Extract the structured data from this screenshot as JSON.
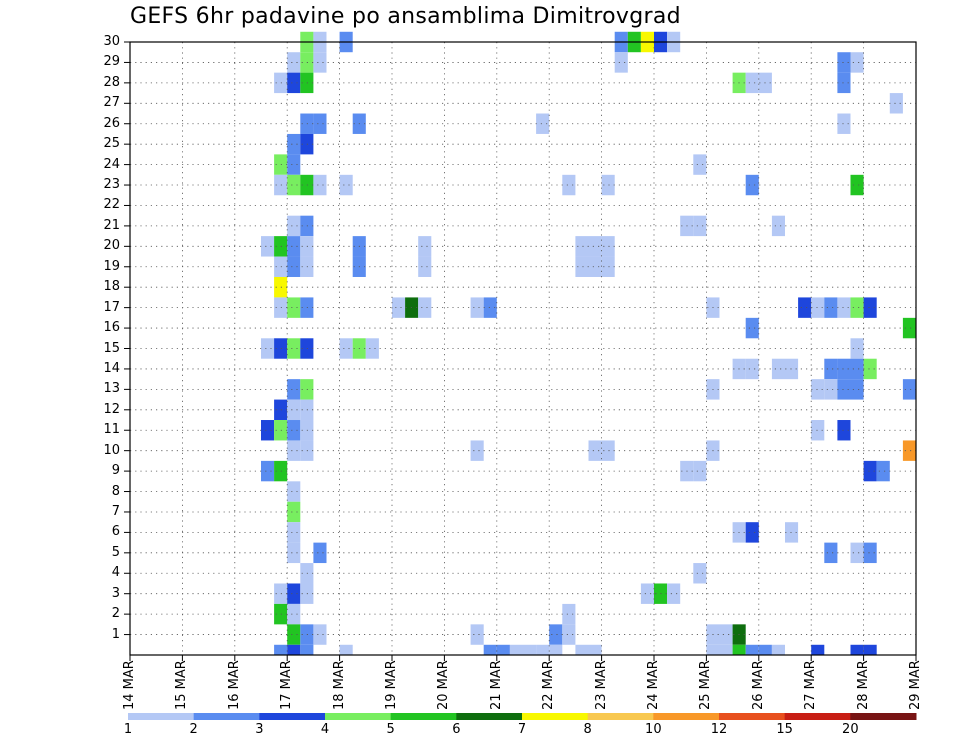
{
  "chart_data": {
    "type": "heatmap",
    "title": "GEFS 6hr padavine po ansamblima Dimitrovgrad",
    "xlabel": "",
    "ylabel": "",
    "x_tick_labels": [
      "14 MAR",
      "15 MAR",
      "16 MAR",
      "17 MAR",
      "18 MAR",
      "19 MAR",
      "20 MAR",
      "21 MAR",
      "22 MAR",
      "23 MAR",
      "24 MAR",
      "25 MAR",
      "26 MAR",
      "27 MAR",
      "28 MAR",
      "29 MAR"
    ],
    "y_tick_labels": [
      "1",
      "2",
      "3",
      "4",
      "5",
      "6",
      "7",
      "8",
      "9",
      "10",
      "11",
      "12",
      "13",
      "14",
      "15",
      "16",
      "17",
      "18",
      "19",
      "20",
      "21",
      "22",
      "23",
      "24",
      "25",
      "26",
      "27",
      "28",
      "29",
      "30"
    ],
    "x_unit": "6-hour step (0 = 14 MAR 00Z)",
    "xlim": [
      0,
      60
    ],
    "ylim": [
      0,
      30
    ],
    "grid": true,
    "levels": [
      1,
      2,
      3,
      4,
      5,
      6,
      7,
      8,
      10,
      12,
      15,
      20
    ],
    "colorbar_labels": [
      "1",
      "2",
      "3",
      "4",
      "5",
      "6",
      "7",
      "8",
      "10",
      "12",
      "15",
      "20"
    ],
    "colors": [
      "#b4c8f5",
      "#5a8cf0",
      "#1e46dc",
      "#78ee60",
      "#22c422",
      "#0e6e0e",
      "#f8f800",
      "#f8c850",
      "#f89828",
      "#e8501e",
      "#c81e14",
      "#781414"
    ],
    "cells": [
      [
        13,
        30,
        4
      ],
      [
        14,
        30,
        1
      ],
      [
        16,
        30,
        2
      ],
      [
        37,
        30,
        2
      ],
      [
        38,
        30,
        5
      ],
      [
        39,
        30,
        7
      ],
      [
        40,
        30,
        3
      ],
      [
        41,
        30,
        1
      ],
      [
        12,
        29,
        1
      ],
      [
        13,
        29,
        4
      ],
      [
        14,
        29,
        1
      ],
      [
        37,
        29,
        1
      ],
      [
        54,
        29,
        2
      ],
      [
        55,
        29,
        1
      ],
      [
        60,
        29,
        1
      ],
      [
        11,
        28,
        1
      ],
      [
        12,
        28,
        3
      ],
      [
        13,
        28,
        5
      ],
      [
        46,
        28,
        4
      ],
      [
        47,
        28,
        1
      ],
      [
        48,
        28,
        1
      ],
      [
        54,
        28,
        2
      ],
      [
        58,
        27,
        1
      ],
      [
        13,
        26,
        2
      ],
      [
        14,
        26,
        2
      ],
      [
        17,
        26,
        2
      ],
      [
        31,
        26,
        1
      ],
      [
        54,
        26,
        1
      ],
      [
        12,
        25,
        2
      ],
      [
        13,
        25,
        3
      ],
      [
        11,
        24,
        4
      ],
      [
        12,
        24,
        2
      ],
      [
        43,
        24,
        1
      ],
      [
        11,
        23,
        1
      ],
      [
        12,
        23,
        4
      ],
      [
        13,
        23,
        5
      ],
      [
        14,
        23,
        1
      ],
      [
        16,
        23,
        1
      ],
      [
        33,
        23,
        1
      ],
      [
        36,
        23,
        1
      ],
      [
        47,
        23,
        2
      ],
      [
        55,
        23,
        5
      ],
      [
        12,
        21,
        1
      ],
      [
        13,
        21,
        2
      ],
      [
        42,
        21,
        1
      ],
      [
        43,
        21,
        1
      ],
      [
        49,
        21,
        1
      ],
      [
        10,
        20,
        1
      ],
      [
        11,
        20,
        5
      ],
      [
        12,
        20,
        2
      ],
      [
        13,
        20,
        1
      ],
      [
        17,
        20,
        2
      ],
      [
        22,
        20,
        1
      ],
      [
        34,
        20,
        1
      ],
      [
        35,
        20,
        1
      ],
      [
        36,
        20,
        1
      ],
      [
        11,
        19,
        1
      ],
      [
        12,
        19,
        2
      ],
      [
        13,
        19,
        1
      ],
      [
        17,
        19,
        2
      ],
      [
        22,
        19,
        1
      ],
      [
        34,
        19,
        1
      ],
      [
        35,
        19,
        1
      ],
      [
        36,
        19,
        1
      ],
      [
        11,
        18,
        7
      ],
      [
        11,
        17,
        1
      ],
      [
        12,
        17,
        4
      ],
      [
        13,
        17,
        2
      ],
      [
        20,
        17,
        1
      ],
      [
        21,
        17,
        6
      ],
      [
        22,
        17,
        1
      ],
      [
        26,
        17,
        1
      ],
      [
        27,
        17,
        2
      ],
      [
        44,
        17,
        1
      ],
      [
        51,
        17,
        3
      ],
      [
        52,
        17,
        1
      ],
      [
        53,
        17,
        2
      ],
      [
        54,
        17,
        1
      ],
      [
        55,
        17,
        4
      ],
      [
        56,
        17,
        3
      ],
      [
        47,
        16,
        2
      ],
      [
        59,
        16,
        5
      ],
      [
        60,
        16,
        7
      ],
      [
        10,
        15,
        1
      ],
      [
        11,
        15,
        3
      ],
      [
        12,
        15,
        4
      ],
      [
        13,
        15,
        3
      ],
      [
        16,
        15,
        1
      ],
      [
        17,
        15,
        4
      ],
      [
        18,
        15,
        1
      ],
      [
        55,
        15,
        1
      ],
      [
        46,
        14,
        1
      ],
      [
        47,
        14,
        1
      ],
      [
        49,
        14,
        1
      ],
      [
        50,
        14,
        1
      ],
      [
        53,
        14,
        2
      ],
      [
        54,
        14,
        2
      ],
      [
        55,
        14,
        2
      ],
      [
        56,
        14,
        4
      ],
      [
        12,
        13,
        2
      ],
      [
        13,
        13,
        4
      ],
      [
        44,
        13,
        1
      ],
      [
        52,
        13,
        1
      ],
      [
        53,
        13,
        1
      ],
      [
        54,
        13,
        2
      ],
      [
        55,
        13,
        2
      ],
      [
        59,
        13,
        2
      ],
      [
        11,
        12,
        3
      ],
      [
        12,
        12,
        1
      ],
      [
        13,
        12,
        1
      ],
      [
        10,
        11,
        3
      ],
      [
        11,
        11,
        4
      ],
      [
        12,
        11,
        2
      ],
      [
        13,
        11,
        1
      ],
      [
        52,
        11,
        1
      ],
      [
        54,
        11,
        3
      ],
      [
        12,
        10,
        1
      ],
      [
        13,
        10,
        1
      ],
      [
        26,
        10,
        1
      ],
      [
        35,
        10,
        1
      ],
      [
        36,
        10,
        1
      ],
      [
        44,
        10,
        1
      ],
      [
        59,
        10,
        9
      ],
      [
        60,
        10,
        5
      ],
      [
        10,
        9,
        2
      ],
      [
        11,
        9,
        5
      ],
      [
        42,
        9,
        1
      ],
      [
        43,
        9,
        1
      ],
      [
        56,
        9,
        3
      ],
      [
        57,
        9,
        2
      ],
      [
        12,
        8,
        1
      ],
      [
        12,
        7,
        4
      ],
      [
        12,
        6,
        1
      ],
      [
        46,
        6,
        1
      ],
      [
        47,
        6,
        3
      ],
      [
        50,
        6,
        1
      ],
      [
        12,
        5,
        1
      ],
      [
        14,
        5,
        2
      ],
      [
        53,
        5,
        2
      ],
      [
        55,
        5,
        1
      ],
      [
        56,
        5,
        2
      ],
      [
        13,
        4,
        1
      ],
      [
        43,
        4,
        1
      ],
      [
        11,
        3,
        1
      ],
      [
        12,
        3,
        3
      ],
      [
        13,
        3,
        1
      ],
      [
        39,
        3,
        1
      ],
      [
        40,
        3,
        5
      ],
      [
        41,
        3,
        1
      ],
      [
        11,
        2,
        5
      ],
      [
        12,
        2,
        1
      ],
      [
        33,
        2,
        1
      ],
      [
        12,
        1,
        5
      ],
      [
        13,
        1,
        2
      ],
      [
        14,
        1,
        1
      ],
      [
        26,
        1,
        1
      ],
      [
        32,
        1,
        2
      ],
      [
        33,
        1,
        1
      ],
      [
        44,
        1,
        1
      ],
      [
        45,
        1,
        1
      ],
      [
        46,
        1,
        6
      ],
      [
        11,
        0,
        2
      ],
      [
        12,
        0,
        3
      ],
      [
        13,
        0,
        2
      ],
      [
        16,
        0,
        1
      ],
      [
        27,
        0,
        2
      ],
      [
        28,
        0,
        2
      ],
      [
        29,
        0,
        1
      ],
      [
        30,
        0,
        1
      ],
      [
        31,
        0,
        1
      ],
      [
        32,
        0,
        1
      ],
      [
        34,
        0,
        1
      ],
      [
        35,
        0,
        1
      ],
      [
        44,
        0,
        1
      ],
      [
        45,
        0,
        1
      ],
      [
        46,
        0,
        5
      ],
      [
        47,
        0,
        2
      ],
      [
        48,
        0,
        2
      ],
      [
        49,
        0,
        1
      ],
      [
        52,
        0,
        3
      ],
      [
        55,
        0,
        3
      ],
      [
        56,
        0,
        3
      ]
    ]
  }
}
